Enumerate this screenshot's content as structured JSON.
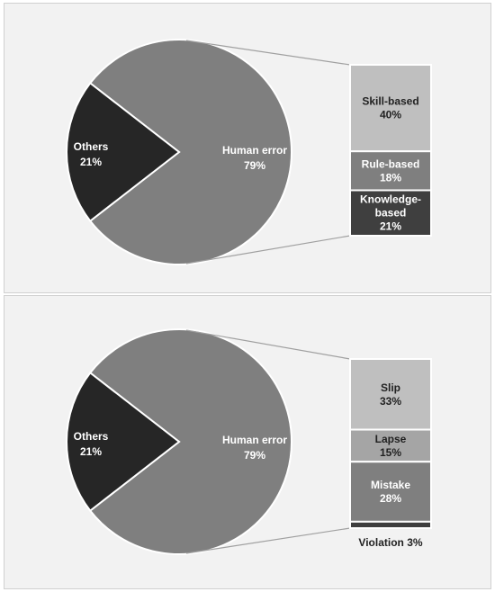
{
  "chart_data": [
    {
      "type": "pie",
      "pie": {
        "slices": [
          {
            "label": "Human error",
            "value": 79,
            "display": "79%",
            "color": "#7f7f7f"
          },
          {
            "label": "Others",
            "value": 21,
            "display": "21%",
            "color": "#262626"
          }
        ]
      },
      "breakdown": {
        "type": "stacked_bar",
        "parent": "Human error",
        "segments": [
          {
            "label": "Skill-based",
            "value": 40,
            "display": "40%",
            "color": "#bfbfbf"
          },
          {
            "label": "Rule-based",
            "value": 18,
            "display": "18%",
            "color": "#7f7f7f"
          },
          {
            "label": "Knowledge-based",
            "label_lines": [
              "Knowledge-",
              "based"
            ],
            "value": 21,
            "display": "21%",
            "color": "#3f3f3f"
          }
        ]
      }
    },
    {
      "type": "pie",
      "pie": {
        "slices": [
          {
            "label": "Human error",
            "value": 79,
            "display": "79%",
            "color": "#7f7f7f"
          },
          {
            "label": "Others",
            "value": 21,
            "display": "21%",
            "color": "#262626"
          }
        ]
      },
      "breakdown": {
        "type": "stacked_bar",
        "parent": "Human error",
        "segments": [
          {
            "label": "Slip",
            "value": 33,
            "display": "33%",
            "color": "#bfbfbf"
          },
          {
            "label": "Lapse",
            "value": 15,
            "display": "15%",
            "color": "#a5a5a5"
          },
          {
            "label": "Mistake",
            "value": 28,
            "display": "28%",
            "color": "#7f7f7f"
          },
          {
            "label": "Violation",
            "value": 3,
            "display": "3%",
            "color": "#3f3f3f",
            "label_outside": true
          }
        ]
      }
    }
  ]
}
